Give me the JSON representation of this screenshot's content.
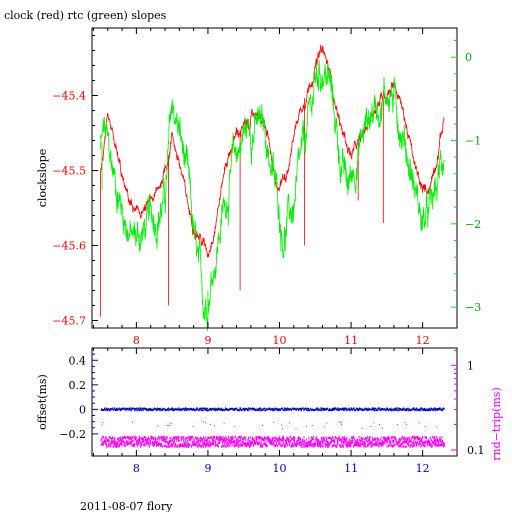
{
  "title": "clock (red) rtc (green) slopes",
  "footer": "2011-08-07 flory",
  "colors": {
    "clock": "#ff0000",
    "rtc": "#00ee00",
    "offset": "#0000cc",
    "rndtrip": "#ff00ff",
    "frame": "#000000"
  },
  "chart_data": [
    {
      "type": "line",
      "title": "clock (red) rtc (green) slopes",
      "ylabel": "clockslope",
      "xlim": [
        7.38,
        12.48
      ],
      "ylim": [
        -45.71,
        -45.31
      ],
      "y2lim": [
        -3.25,
        0.35
      ],
      "x_ticks": [
        8,
        9,
        10,
        11,
        12
      ],
      "y_ticks": [
        -45.7,
        -45.6,
        -45.5,
        -45.4
      ],
      "y2_ticks": [
        -3,
        -2,
        -1,
        0
      ],
      "y2_tick_labels": [
        "−3",
        "−2",
        "−1",
        "0"
      ],
      "x_tick_labels": [
        "8",
        "9",
        "10",
        "11",
        "12"
      ],
      "y_tick_labels": [
        "−45.7",
        "−45.6",
        "−45.5",
        "−45.4"
      ],
      "series": [
        {
          "axis": "left",
          "x": [
            7.5,
            7.55,
            7.6,
            7.7,
            7.85,
            8.0,
            8.15,
            8.3,
            8.45,
            8.5,
            8.6,
            8.75,
            8.9,
            9.0,
            9.1,
            9.25,
            9.4,
            9.55,
            9.7,
            9.85,
            9.95,
            10.1,
            10.25,
            10.4,
            10.5,
            10.6,
            10.7,
            10.85,
            11.0,
            11.15,
            11.3,
            11.45,
            11.6,
            11.75,
            11.9,
            12.0,
            12.1,
            12.2,
            12.3
          ],
          "y": [
            -45.5,
            -45.47,
            -45.44,
            -45.47,
            -45.53,
            -45.56,
            -45.55,
            -45.53,
            -45.48,
            -45.45,
            -45.49,
            -45.56,
            -45.59,
            -45.61,
            -45.57,
            -45.49,
            -45.45,
            -45.44,
            -45.42,
            -45.46,
            -45.53,
            -45.5,
            -45.43,
            -45.39,
            -45.36,
            -45.34,
            -45.37,
            -45.44,
            -45.48,
            -45.46,
            -45.42,
            -45.4,
            -45.38,
            -45.43,
            -45.5,
            -45.53,
            -45.52,
            -45.48,
            -45.43
          ]
        },
        {
          "axis": "right",
          "x": [
            7.5,
            7.55,
            7.65,
            7.8,
            7.95,
            8.1,
            8.25,
            8.4,
            8.5,
            8.6,
            8.7,
            8.85,
            8.95,
            9.05,
            9.2,
            9.35,
            9.5,
            9.65,
            9.8,
            9.95,
            10.05,
            10.2,
            10.35,
            10.5,
            10.6,
            10.7,
            10.85,
            10.95,
            11.1,
            11.25,
            11.4,
            11.55,
            11.7,
            11.85,
            12.0,
            12.1,
            12.2,
            12.3
          ],
          "y": [
            -1.1,
            -0.9,
            -1.3,
            -1.8,
            -2.2,
            -2.1,
            -1.9,
            -1.7,
            -0.6,
            -0.9,
            -1.4,
            -2.5,
            -3.0,
            -2.6,
            -1.9,
            -1.3,
            -0.9,
            -0.8,
            -0.9,
            -1.6,
            -2.1,
            -1.8,
            -1.1,
            -0.3,
            -0.1,
            -0.3,
            -1.2,
            -1.6,
            -1.1,
            -0.7,
            -0.5,
            -0.4,
            -0.8,
            -1.4,
            -2.0,
            -1.9,
            -1.6,
            -1.1
          ]
        }
      ]
    },
    {
      "type": "scatter",
      "ylabel": "offset(ms)",
      "y2label": "rnd−trip(ms)",
      "xlim": [
        7.38,
        12.48
      ],
      "ylim": [
        -0.38,
        0.5
      ],
      "y2_scale": "log",
      "y2lim": [
        0.085,
        1.6
      ],
      "x_ticks": [
        8,
        9,
        10,
        11,
        12
      ],
      "y_ticks": [
        -0.2,
        0,
        0.2,
        0.4
      ],
      "y2_ticks": [
        0.1,
        1
      ],
      "x_tick_labels": [
        "8",
        "9",
        "10",
        "11",
        "12"
      ],
      "y_tick_labels": [
        "−0.2",
        "0",
        "0.2",
        "0.4"
      ],
      "y2_tick_labels": [
        "0.1",
        "1"
      ],
      "series": [
        {
          "axis": "left",
          "x": [
            7.5,
            12.3
          ],
          "y": [
            0.0,
            0.0
          ]
        },
        {
          "axis": "right",
          "x": [
            7.5,
            12.3
          ],
          "y": [
            0.125,
            0.125
          ]
        }
      ]
    }
  ]
}
